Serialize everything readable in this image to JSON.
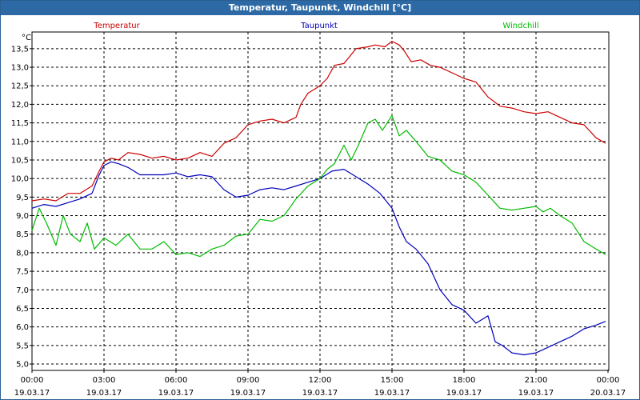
{
  "window": {
    "title": "Temperatur, Taupunkt, Windchill [°C]"
  },
  "chart_data": {
    "type": "line",
    "title": "Temperatur, Taupunkt, Windchill [°C]",
    "ylabel": "°C",
    "ylim": [
      4.85,
      13.95
    ],
    "xlim": [
      0,
      24
    ],
    "grid": true,
    "yticks": [
      5.0,
      5.5,
      6.0,
      6.5,
      7.0,
      7.5,
      8.0,
      8.5,
      9.0,
      9.5,
      10.0,
      10.5,
      11.0,
      11.5,
      12.0,
      12.5,
      13.0,
      13.5
    ],
    "ytick_labels": [
      "5,0",
      "5,5",
      "6,0",
      "6,5",
      "7,0",
      "7,5",
      "8,0",
      "8,5",
      "9,0",
      "9,5",
      "10,0",
      "10,5",
      "11,0",
      "11,5",
      "12,0",
      "12,5",
      "13,0",
      "13,5"
    ],
    "xticks": [
      0,
      3,
      6,
      9,
      12,
      15,
      18,
      21,
      24
    ],
    "xtick_times": [
      "00:00",
      "03:00",
      "06:00",
      "09:00",
      "12:00",
      "15:00",
      "18:00",
      "21:00",
      "00:00"
    ],
    "xtick_dates": [
      "19.03.17",
      "19.03.17",
      "19.03.17",
      "19.03.17",
      "19.03.17",
      "19.03.17",
      "19.03.17",
      "19.03.17",
      "20.03.17"
    ],
    "series": [
      {
        "name": "Temperatur",
        "color": "#cc0000",
        "points": [
          [
            0,
            9.4
          ],
          [
            0.5,
            9.45
          ],
          [
            1.0,
            9.4
          ],
          [
            1.5,
            9.6
          ],
          [
            2.0,
            9.6
          ],
          [
            2.5,
            9.8
          ],
          [
            2.8,
            10.2
          ],
          [
            3.0,
            10.45
          ],
          [
            3.3,
            10.55
          ],
          [
            3.6,
            10.5
          ],
          [
            4.0,
            10.7
          ],
          [
            4.5,
            10.65
          ],
          [
            5.0,
            10.55
          ],
          [
            5.5,
            10.6
          ],
          [
            6.0,
            10.5
          ],
          [
            6.5,
            10.55
          ],
          [
            7.0,
            10.7
          ],
          [
            7.5,
            10.6
          ],
          [
            8.0,
            10.95
          ],
          [
            8.5,
            11.1
          ],
          [
            9.0,
            11.45
          ],
          [
            9.5,
            11.55
          ],
          [
            10.0,
            11.6
          ],
          [
            10.5,
            11.5
          ],
          [
            11.0,
            11.65
          ],
          [
            11.2,
            12.0
          ],
          [
            11.5,
            12.3
          ],
          [
            12.0,
            12.5
          ],
          [
            12.3,
            12.7
          ],
          [
            12.6,
            13.05
          ],
          [
            13.0,
            13.1
          ],
          [
            13.5,
            13.5
          ],
          [
            14.0,
            13.55
          ],
          [
            14.3,
            13.6
          ],
          [
            14.7,
            13.55
          ],
          [
            15.0,
            13.7
          ],
          [
            15.3,
            13.6
          ],
          [
            15.5,
            13.45
          ],
          [
            15.8,
            13.15
          ],
          [
            16.2,
            13.2
          ],
          [
            16.6,
            13.05
          ],
          [
            17.0,
            13.0
          ],
          [
            17.5,
            12.85
          ],
          [
            18.0,
            12.7
          ],
          [
            18.5,
            12.6
          ],
          [
            19.0,
            12.2
          ],
          [
            19.5,
            11.95
          ],
          [
            20.0,
            11.9
          ],
          [
            20.5,
            11.8
          ],
          [
            21.0,
            11.75
          ],
          [
            21.5,
            11.8
          ],
          [
            22.0,
            11.65
          ],
          [
            22.5,
            11.5
          ],
          [
            23.0,
            11.45
          ],
          [
            23.5,
            11.1
          ],
          [
            23.9,
            10.95
          ]
        ]
      },
      {
        "name": "Taupunkt",
        "color": "#0000bb",
        "points": [
          [
            0,
            9.2
          ],
          [
            0.5,
            9.3
          ],
          [
            1.0,
            9.25
          ],
          [
            1.5,
            9.35
          ],
          [
            2.0,
            9.45
          ],
          [
            2.5,
            9.6
          ],
          [
            2.8,
            10.1
          ],
          [
            3.0,
            10.35
          ],
          [
            3.3,
            10.45
          ],
          [
            3.6,
            10.4
          ],
          [
            4.0,
            10.3
          ],
          [
            4.5,
            10.1
          ],
          [
            5.0,
            10.1
          ],
          [
            5.5,
            10.1
          ],
          [
            6.0,
            10.15
          ],
          [
            6.5,
            10.05
          ],
          [
            7.0,
            10.1
          ],
          [
            7.5,
            10.05
          ],
          [
            8.0,
            9.7
          ],
          [
            8.5,
            9.5
          ],
          [
            9.0,
            9.55
          ],
          [
            9.5,
            9.7
          ],
          [
            10.0,
            9.75
          ],
          [
            10.5,
            9.7
          ],
          [
            11.0,
            9.8
          ],
          [
            11.5,
            9.9
          ],
          [
            12.0,
            10.0
          ],
          [
            12.5,
            10.2
          ],
          [
            13.0,
            10.25
          ],
          [
            13.5,
            10.05
          ],
          [
            14.0,
            9.85
          ],
          [
            14.5,
            9.6
          ],
          [
            15.0,
            9.2
          ],
          [
            15.3,
            8.7
          ],
          [
            15.6,
            8.3
          ],
          [
            16.0,
            8.1
          ],
          [
            16.5,
            7.7
          ],
          [
            17.0,
            7.0
          ],
          [
            17.5,
            6.6
          ],
          [
            18.0,
            6.45
          ],
          [
            18.5,
            6.1
          ],
          [
            19.0,
            6.3
          ],
          [
            19.3,
            5.6
          ],
          [
            19.6,
            5.5
          ],
          [
            20.0,
            5.3
          ],
          [
            20.5,
            5.25
          ],
          [
            21.0,
            5.3
          ],
          [
            21.5,
            5.45
          ],
          [
            22.0,
            5.6
          ],
          [
            22.5,
            5.75
          ],
          [
            23.0,
            5.95
          ],
          [
            23.5,
            6.05
          ],
          [
            23.9,
            6.15
          ]
        ]
      },
      {
        "name": "Windchill",
        "color": "#00bb00",
        "points": [
          [
            0,
            8.6
          ],
          [
            0.3,
            9.2
          ],
          [
            0.6,
            8.8
          ],
          [
            1.0,
            8.2
          ],
          [
            1.3,
            9.0
          ],
          [
            1.6,
            8.5
          ],
          [
            2.0,
            8.3
          ],
          [
            2.3,
            8.8
          ],
          [
            2.6,
            8.1
          ],
          [
            3.0,
            8.4
          ],
          [
            3.5,
            8.2
          ],
          [
            4.0,
            8.5
          ],
          [
            4.5,
            8.1
          ],
          [
            5.0,
            8.1
          ],
          [
            5.5,
            8.3
          ],
          [
            6.0,
            7.95
          ],
          [
            6.5,
            8.0
          ],
          [
            7.0,
            7.9
          ],
          [
            7.5,
            8.1
          ],
          [
            8.0,
            8.2
          ],
          [
            8.5,
            8.45
          ],
          [
            9.0,
            8.5
          ],
          [
            9.5,
            8.9
          ],
          [
            10.0,
            8.85
          ],
          [
            10.5,
            9.0
          ],
          [
            11.0,
            9.45
          ],
          [
            11.5,
            9.8
          ],
          [
            12.0,
            10.0
          ],
          [
            12.3,
            10.25
          ],
          [
            12.6,
            10.4
          ],
          [
            13.0,
            10.9
          ],
          [
            13.3,
            10.5
          ],
          [
            13.6,
            10.9
          ],
          [
            14.0,
            11.5
          ],
          [
            14.3,
            11.6
          ],
          [
            14.6,
            11.3
          ],
          [
            15.0,
            11.7
          ],
          [
            15.3,
            11.15
          ],
          [
            15.6,
            11.3
          ],
          [
            16.0,
            11.0
          ],
          [
            16.5,
            10.6
          ],
          [
            17.0,
            10.5
          ],
          [
            17.5,
            10.2
          ],
          [
            18.0,
            10.1
          ],
          [
            18.5,
            9.9
          ],
          [
            19.0,
            9.55
          ],
          [
            19.5,
            9.2
          ],
          [
            20.0,
            9.15
          ],
          [
            20.5,
            9.2
          ],
          [
            21.0,
            9.25
          ],
          [
            21.3,
            9.1
          ],
          [
            21.6,
            9.2
          ],
          [
            22.0,
            9.0
          ],
          [
            22.5,
            8.8
          ],
          [
            23.0,
            8.3
          ],
          [
            23.5,
            8.1
          ],
          [
            23.9,
            7.95
          ]
        ]
      }
    ]
  }
}
